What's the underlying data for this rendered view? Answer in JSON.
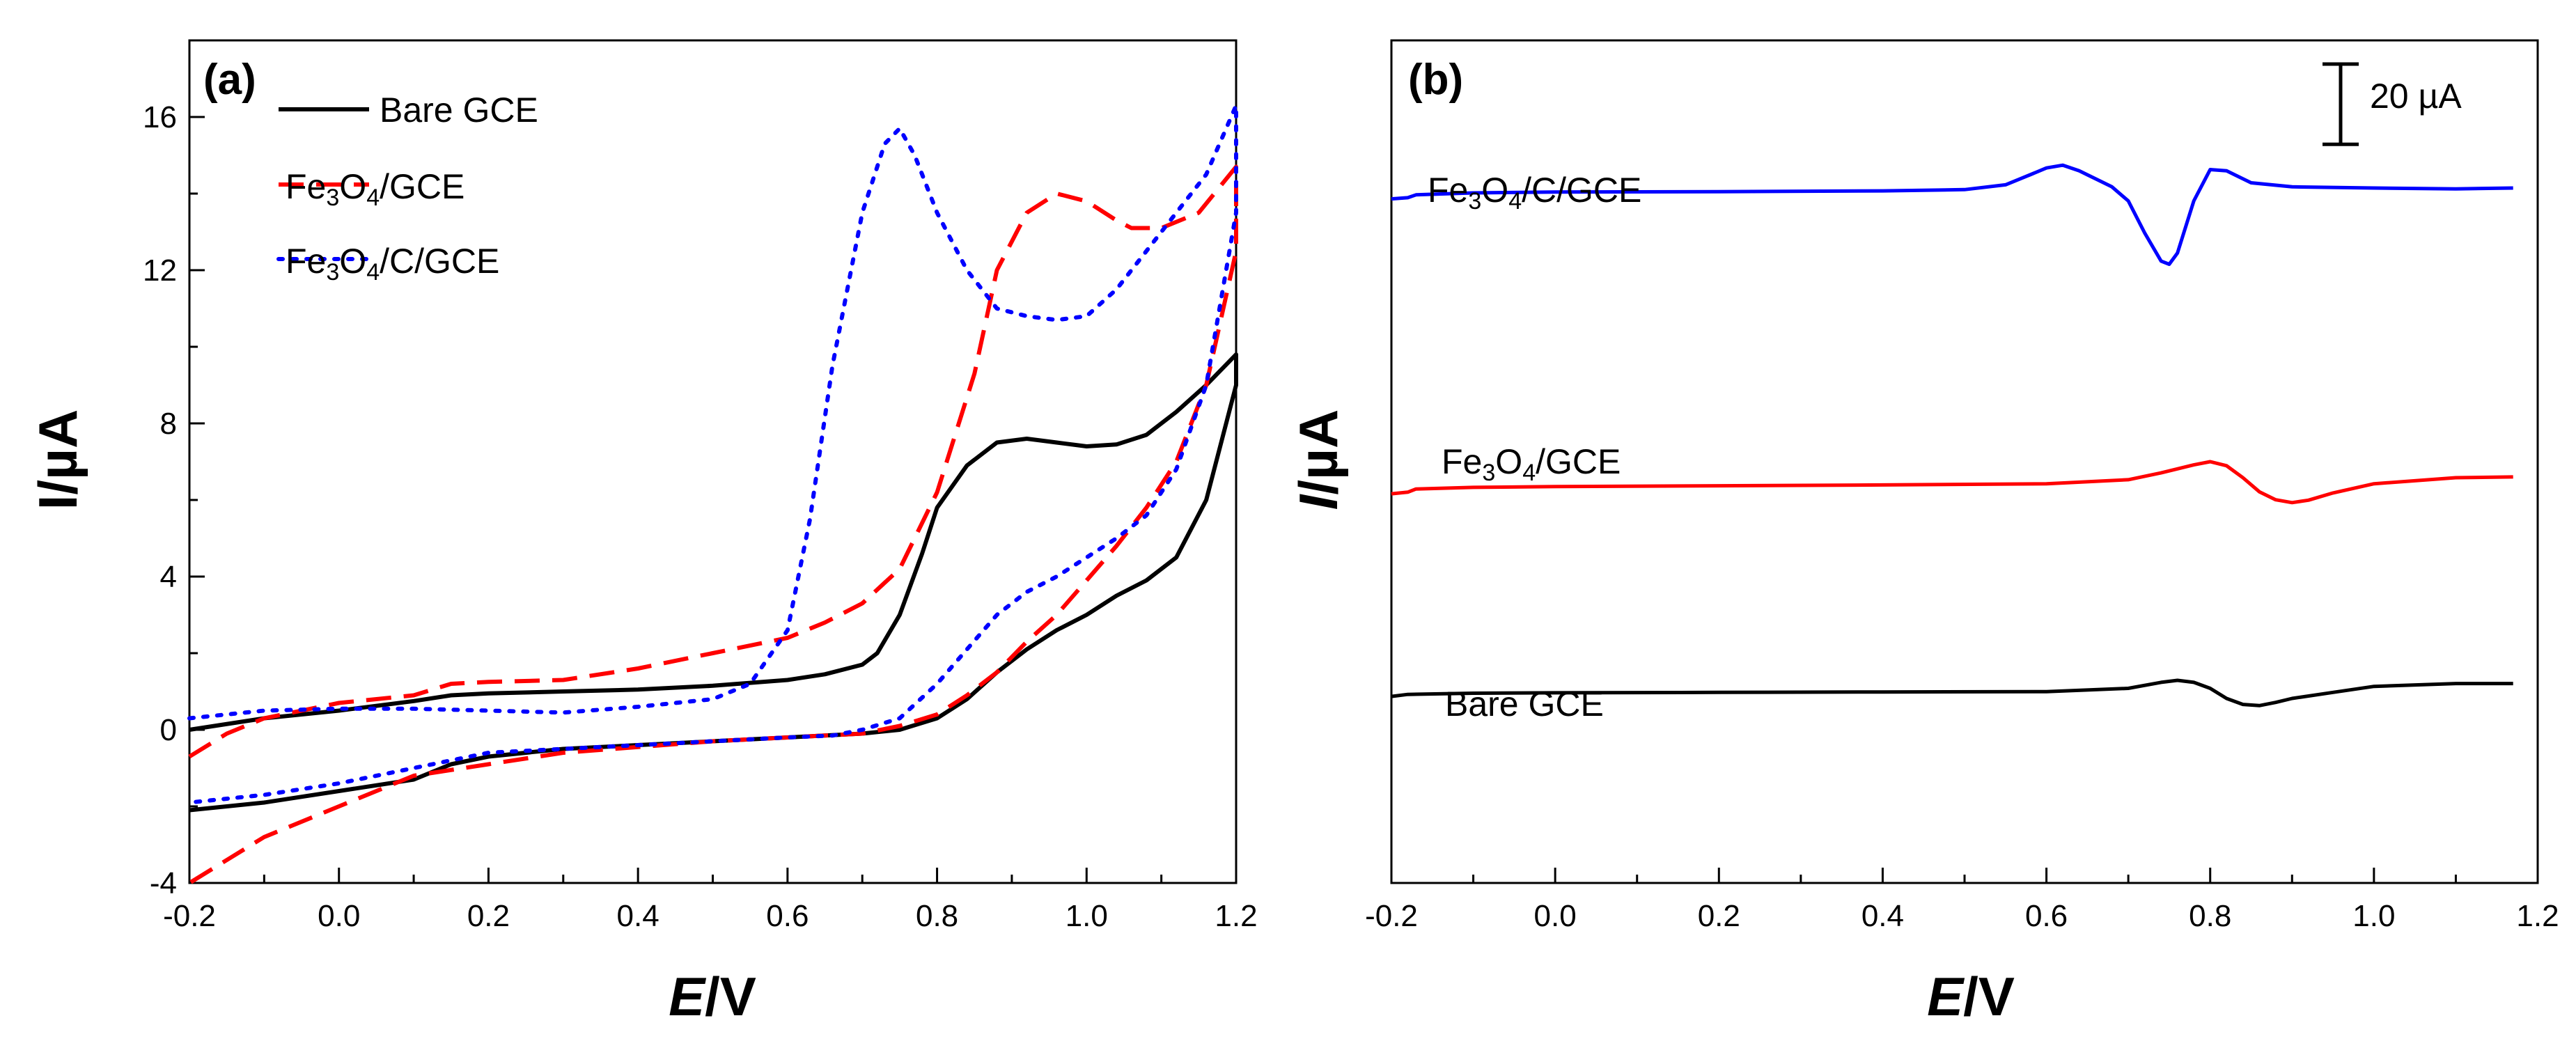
{
  "chart_data": [
    {
      "panel": "(a)",
      "type": "line",
      "xlabel_italic": "E",
      "xlabel_unit": "/V",
      "ylabel": "I/µA",
      "xlim": [
        -0.2,
        1.2
      ],
      "ylim": [
        -4,
        18
      ],
      "xticks": [
        "-0.2",
        "0.0",
        "0.2",
        "0.4",
        "0.6",
        "0.8",
        "1.0",
        "1.2"
      ],
      "yticks": [
        "-4",
        "0",
        "4",
        "8",
        "12",
        "16"
      ],
      "legend_position": "top-left",
      "series": [
        {
          "name": "Bare GCE",
          "legend_parts": [
            {
              "t": "Bare GCE"
            }
          ],
          "color": "#000000",
          "style": "solid",
          "x": [
            -0.2,
            -0.1,
            0.0,
            0.1,
            0.15,
            0.2,
            0.3,
            0.4,
            0.5,
            0.6,
            0.65,
            0.7,
            0.72,
            0.75,
            0.78,
            0.8,
            0.84,
            0.88,
            0.92,
            0.96,
            1.0,
            1.04,
            1.08,
            1.12,
            1.16,
            1.2,
            1.2,
            1.16,
            1.12,
            1.08,
            1.04,
            1.0,
            0.96,
            0.92,
            0.88,
            0.84,
            0.8,
            0.75,
            0.7,
            0.65,
            0.6,
            0.5,
            0.4,
            0.3,
            0.2,
            0.15,
            0.1,
            0.0,
            -0.1,
            -0.2
          ],
          "y": [
            0.0,
            0.3,
            0.5,
            0.75,
            0.9,
            0.95,
            1.0,
            1.05,
            1.15,
            1.3,
            1.45,
            1.7,
            2.0,
            3.0,
            4.6,
            5.8,
            6.9,
            7.5,
            7.6,
            7.5,
            7.4,
            7.45,
            7.7,
            8.3,
            9.0,
            9.8,
            9.0,
            6.0,
            4.5,
            3.9,
            3.5,
            3.0,
            2.6,
            2.1,
            1.5,
            0.8,
            0.3,
            0.0,
            -0.1,
            -0.15,
            -0.2,
            -0.3,
            -0.4,
            -0.5,
            -0.7,
            -0.9,
            -1.3,
            -1.6,
            -1.9,
            -2.1
          ]
        },
        {
          "name": "Fe3O4/GCE",
          "legend_parts": [
            {
              "t": "Fe"
            },
            {
              "t": "3",
              "sub": true
            },
            {
              "t": "O"
            },
            {
              "t": "4",
              "sub": true
            },
            {
              "t": "/GCE"
            }
          ],
          "color": "#ff0000",
          "style": "dashed",
          "x": [
            -0.2,
            -0.15,
            -0.1,
            0.0,
            0.1,
            0.15,
            0.2,
            0.3,
            0.4,
            0.5,
            0.6,
            0.65,
            0.7,
            0.75,
            0.8,
            0.85,
            0.88,
            0.92,
            0.96,
            1.0,
            1.04,
            1.06,
            1.1,
            1.15,
            1.2,
            1.2,
            1.16,
            1.12,
            1.08,
            1.04,
            1.0,
            0.96,
            0.92,
            0.88,
            0.84,
            0.8,
            0.75,
            0.7,
            0.6,
            0.5,
            0.4,
            0.3,
            0.2,
            0.1,
            0.0,
            -0.1,
            -0.2
          ],
          "y": [
            -0.7,
            -0.1,
            0.3,
            0.7,
            0.9,
            1.2,
            1.25,
            1.3,
            1.6,
            2.0,
            2.4,
            2.8,
            3.3,
            4.2,
            6.2,
            9.3,
            12.0,
            13.5,
            14.0,
            13.8,
            13.3,
            13.1,
            13.1,
            13.5,
            14.7,
            12.5,
            9.0,
            7.0,
            5.8,
            4.8,
            3.9,
            3.0,
            2.3,
            1.5,
            0.9,
            0.4,
            0.1,
            -0.1,
            -0.2,
            -0.3,
            -0.45,
            -0.6,
            -0.9,
            -1.2,
            -2.0,
            -2.8,
            -4.0
          ]
        },
        {
          "name": "Fe3O4/C/GCE",
          "legend_parts": [
            {
              "t": "Fe"
            },
            {
              "t": "3",
              "sub": true
            },
            {
              "t": "O"
            },
            {
              "t": "4",
              "sub": true
            },
            {
              "t": "/C/GCE"
            }
          ],
          "color": "#0000ff",
          "style": "dotted",
          "x": [
            -0.2,
            -0.1,
            0.0,
            0.1,
            0.2,
            0.3,
            0.4,
            0.5,
            0.55,
            0.6,
            0.63,
            0.66,
            0.7,
            0.73,
            0.75,
            0.77,
            0.8,
            0.84,
            0.88,
            0.92,
            0.96,
            1.0,
            1.04,
            1.08,
            1.12,
            1.16,
            1.2,
            1.2,
            1.16,
            1.12,
            1.08,
            1.04,
            1.0,
            0.96,
            0.92,
            0.88,
            0.84,
            0.8,
            0.75,
            0.7,
            0.66,
            0.6,
            0.5,
            0.4,
            0.3,
            0.2,
            0.1,
            0.0,
            -0.1,
            -0.2
          ],
          "y": [
            0.3,
            0.5,
            0.55,
            0.55,
            0.5,
            0.45,
            0.6,
            0.8,
            1.2,
            2.6,
            5.5,
            9.5,
            13.5,
            15.3,
            15.7,
            15.0,
            13.5,
            12.0,
            11.0,
            10.8,
            10.7,
            10.8,
            11.5,
            12.5,
            13.5,
            14.5,
            16.3,
            13.5,
            9.0,
            6.8,
            5.6,
            5.0,
            4.5,
            4.0,
            3.6,
            3.0,
            2.1,
            1.2,
            0.3,
            0.0,
            -0.15,
            -0.2,
            -0.3,
            -0.4,
            -0.5,
            -0.6,
            -1.0,
            -1.4,
            -1.7,
            -1.9
          ]
        }
      ]
    },
    {
      "panel": "(b)",
      "type": "line",
      "xlabel_italic": "E",
      "xlabel_unit": "/V",
      "ylabel_italic": "I",
      "ylabel_unit": "/µA",
      "xlim": [
        -0.2,
        1.2
      ],
      "xticks": [
        "-0.2",
        "0.0",
        "0.2",
        "0.4",
        "0.6",
        "0.8",
        "1.0",
        "1.2"
      ],
      "y_range_uA": [
        -130,
        80
      ],
      "scale_bar": {
        "value_uA": 20,
        "label": "20 µA"
      },
      "series": [
        {
          "name": "Fe3O4/C/GCE",
          "label_parts": [
            {
              "t": "Fe"
            },
            {
              "t": "3",
              "sub": true
            },
            {
              "t": "O"
            },
            {
              "t": "4",
              "sub": true
            },
            {
              "t": "/C/GCE"
            }
          ],
          "color": "#0000ff",
          "x": [
            -0.2,
            -0.18,
            -0.17,
            -0.1,
            0.0,
            0.2,
            0.4,
            0.5,
            0.55,
            0.58,
            0.6,
            0.62,
            0.64,
            0.66,
            0.68,
            0.7,
            0.72,
            0.74,
            0.75,
            0.76,
            0.78,
            0.8,
            0.82,
            0.85,
            0.9,
            1.0,
            1.1,
            1.17
          ],
          "y": [
            40.5,
            40.8,
            41.5,
            42.0,
            42.2,
            42.3,
            42.5,
            42.8,
            44.0,
            46.5,
            48.2,
            48.9,
            47.5,
            45.5,
            43.5,
            40.0,
            32.0,
            25.0,
            24.2,
            27.0,
            40.0,
            47.8,
            47.5,
            44.5,
            43.5,
            43.2,
            43.0,
            43.2
          ]
        },
        {
          "name": "Fe3O4/GCE",
          "label_parts": [
            {
              "t": "Fe"
            },
            {
              "t": "3",
              "sub": true
            },
            {
              "t": "O"
            },
            {
              "t": "4",
              "sub": true
            },
            {
              "t": "/GCE"
            }
          ],
          "color": "#ff0000",
          "x": [
            -0.2,
            -0.18,
            -0.17,
            -0.1,
            0.0,
            0.2,
            0.4,
            0.6,
            0.7,
            0.74,
            0.78,
            0.8,
            0.82,
            0.84,
            0.86,
            0.88,
            0.9,
            0.92,
            0.95,
            1.0,
            1.1,
            1.17
          ],
          "y": [
            -33.0,
            -32.6,
            -31.8,
            -31.4,
            -31.2,
            -31.0,
            -30.8,
            -30.5,
            -29.5,
            -27.8,
            -25.8,
            -25.0,
            -26.0,
            -29.0,
            -32.5,
            -34.5,
            -35.2,
            -34.6,
            -32.8,
            -30.5,
            -29.0,
            -28.8
          ]
        },
        {
          "name": "Bare GCE",
          "label_parts": [
            {
              "t": "Bare GCE"
            }
          ],
          "color": "#000000",
          "x": [
            -0.2,
            -0.18,
            -0.1,
            0.0,
            0.2,
            0.4,
            0.6,
            0.7,
            0.74,
            0.76,
            0.78,
            0.8,
            0.82,
            0.84,
            0.86,
            0.88,
            0.9,
            0.95,
            1.0,
            1.1,
            1.17
          ],
          "y": [
            -83.5,
            -83.0,
            -82.7,
            -82.6,
            -82.5,
            -82.4,
            -82.3,
            -81.5,
            -80.0,
            -79.5,
            -80.0,
            -81.5,
            -84.0,
            -85.5,
            -85.8,
            -85.0,
            -84.0,
            -82.5,
            -81.0,
            -80.3,
            -80.3
          ]
        }
      ]
    }
  ]
}
